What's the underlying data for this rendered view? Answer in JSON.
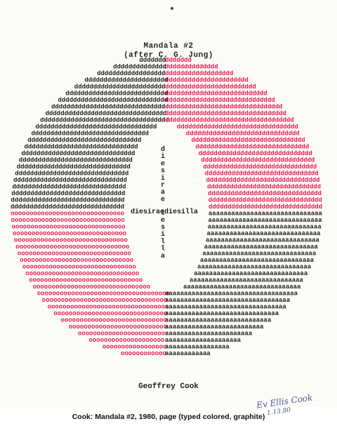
{
  "artwork": {
    "title_line1": "Mandala #2",
    "title_line2": "(after C. G. Jung)",
    "center_horizontal_text": "diesiraediesilla",
    "center_vertical_text": "diesiraediesilla",
    "glyph_d": "d",
    "glyph_a": "a",
    "glyph_o": "o",
    "author": "Geoffrey Cook",
    "signature": "Ev Ellis Cook",
    "signature_date": "1.13.80"
  },
  "caption": "Cook: Mandala #2, 1980, page (typed colored, graphite)",
  "colors": {
    "black_ink": "#1c1c1c",
    "red_ink": "#e8194f",
    "paper": "#fbfbf8"
  }
}
